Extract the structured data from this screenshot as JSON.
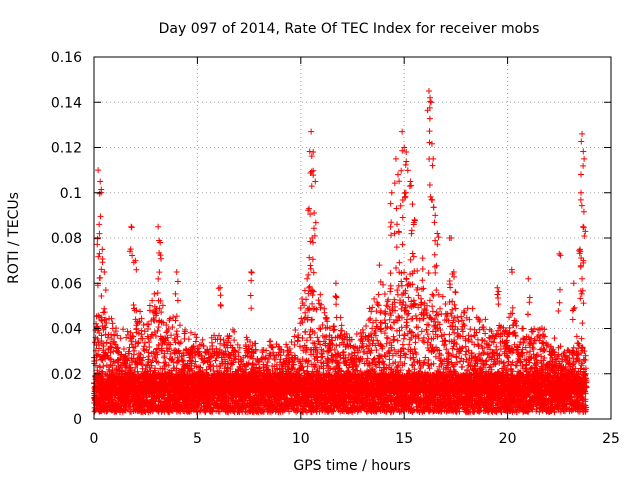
{
  "chart_data": {
    "type": "scatter",
    "title": "Day 097 of 2014, Rate Of TEC Index for receiver mobs",
    "xlabel": "GPS time / hours",
    "ylabel": "ROTI / TECUs",
    "xlim": [
      0,
      25
    ],
    "ylim": [
      0,
      0.16
    ],
    "x_ticks": [
      "0",
      "5",
      "10",
      "15",
      "20",
      "25"
    ],
    "y_ticks": [
      "0",
      "0.02",
      "0.04",
      "0.06",
      "0.08",
      "0.1",
      "0.12",
      "0.14",
      "0.16"
    ],
    "grid": true,
    "marker": "+",
    "series_color": "#ff0000",
    "envelope": {
      "description": "dense ROTI scatter; baseline band plus time-varying upper envelope",
      "baseline_range": [
        0.003,
        0.02
      ],
      "hours": [
        0,
        0.5,
        1,
        1.5,
        2,
        2.5,
        3,
        3.5,
        4,
        4.5,
        5,
        5.5,
        6,
        6.5,
        7,
        7.5,
        8,
        8.5,
        9,
        9.5,
        10,
        10.5,
        11,
        11.5,
        12,
        12.5,
        13,
        13.5,
        14,
        14.5,
        15,
        15.5,
        16,
        16.5,
        17,
        17.5,
        18,
        18.5,
        19,
        19.5,
        20,
        20.5,
        21,
        21.5,
        22,
        22.5,
        23,
        23.5,
        23.8
      ],
      "upper": [
        0.045,
        0.05,
        0.04,
        0.035,
        0.05,
        0.04,
        0.06,
        0.045,
        0.04,
        0.035,
        0.035,
        0.035,
        0.035,
        0.04,
        0.035,
        0.035,
        0.03,
        0.035,
        0.03,
        0.03,
        0.05,
        0.065,
        0.05,
        0.04,
        0.045,
        0.035,
        0.04,
        0.05,
        0.06,
        0.06,
        0.07,
        0.065,
        0.065,
        0.055,
        0.05,
        0.05,
        0.045,
        0.045,
        0.04,
        0.04,
        0.045,
        0.045,
        0.04,
        0.04,
        0.035,
        0.03,
        0.03,
        0.035,
        0.03
      ]
    },
    "peaks": [
      {
        "x": 0.2,
        "y": 0.11
      },
      {
        "x": 0.3,
        "y": 0.105
      },
      {
        "x": 0.25,
        "y": 0.086
      },
      {
        "x": 0.4,
        "y": 0.075
      },
      {
        "x": 0.5,
        "y": 0.065
      },
      {
        "x": 1.8,
        "y": 0.085
      },
      {
        "x": 2.0,
        "y": 0.07
      },
      {
        "x": 3.1,
        "y": 0.085
      },
      {
        "x": 3.2,
        "y": 0.078
      },
      {
        "x": 4.0,
        "y": 0.065
      },
      {
        "x": 6.1,
        "y": 0.058
      },
      {
        "x": 7.6,
        "y": 0.065
      },
      {
        "x": 10.5,
        "y": 0.127
      },
      {
        "x": 10.6,
        "y": 0.118
      },
      {
        "x": 10.4,
        "y": 0.093
      },
      {
        "x": 10.7,
        "y": 0.105
      },
      {
        "x": 10.55,
        "y": 0.08
      },
      {
        "x": 11.7,
        "y": 0.06
      },
      {
        "x": 13.8,
        "y": 0.068
      },
      {
        "x": 14.4,
        "y": 0.1
      },
      {
        "x": 14.6,
        "y": 0.115
      },
      {
        "x": 14.7,
        "y": 0.108
      },
      {
        "x": 14.9,
        "y": 0.127
      },
      {
        "x": 15.0,
        "y": 0.12
      },
      {
        "x": 15.1,
        "y": 0.118
      },
      {
        "x": 15.3,
        "y": 0.105
      },
      {
        "x": 15.4,
        "y": 0.095
      },
      {
        "x": 15.5,
        "y": 0.088
      },
      {
        "x": 16.2,
        "y": 0.145
      },
      {
        "x": 16.3,
        "y": 0.14
      },
      {
        "x": 16.25,
        "y": 0.142
      },
      {
        "x": 16.4,
        "y": 0.115
      },
      {
        "x": 16.5,
        "y": 0.09
      },
      {
        "x": 16.6,
        "y": 0.082
      },
      {
        "x": 17.2,
        "y": 0.08
      },
      {
        "x": 17.4,
        "y": 0.065
      },
      {
        "x": 19.5,
        "y": 0.058
      },
      {
        "x": 20.2,
        "y": 0.066
      },
      {
        "x": 21.0,
        "y": 0.062
      },
      {
        "x": 22.5,
        "y": 0.073
      },
      {
        "x": 23.2,
        "y": 0.06
      },
      {
        "x": 23.6,
        "y": 0.126
      },
      {
        "x": 23.7,
        "y": 0.115
      },
      {
        "x": 23.55,
        "y": 0.1
      },
      {
        "x": 23.65,
        "y": 0.085
      },
      {
        "x": 23.5,
        "y": 0.075
      },
      {
        "x": 23.6,
        "y": 0.062
      }
    ]
  }
}
